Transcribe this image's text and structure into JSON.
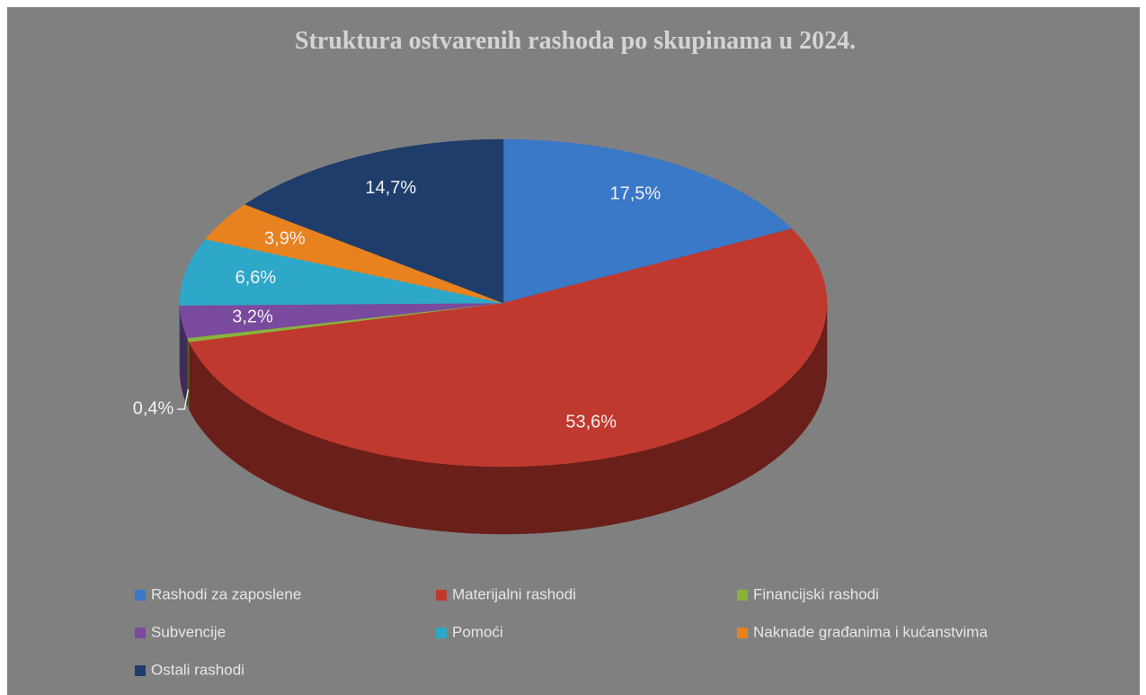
{
  "chart_data": {
    "type": "pie",
    "title": "Struktura ostvarenih rashoda po skupinama u 2024.",
    "categories": [
      "Rashodi za zaposlene",
      "Materijalni rashodi",
      "Financijski rashodi",
      "Subvencije",
      "Pomoći",
      "Naknade građanima i kućanstvima",
      "Ostali rashodi"
    ],
    "values": [
      17.5,
      53.6,
      0.4,
      3.2,
      6.6,
      3.9,
      14.7
    ],
    "value_labels": [
      "17,5%",
      "53,6%",
      "0,4%",
      "3,2%",
      "6,6%",
      "3,9%",
      "14,7%"
    ],
    "colors": [
      "#3a78c8",
      "#c0392f",
      "#8ab23a",
      "#7a4a9e",
      "#2ea8c8",
      "#e8821e",
      "#1f3d6b"
    ],
    "legend": "bottom"
  }
}
